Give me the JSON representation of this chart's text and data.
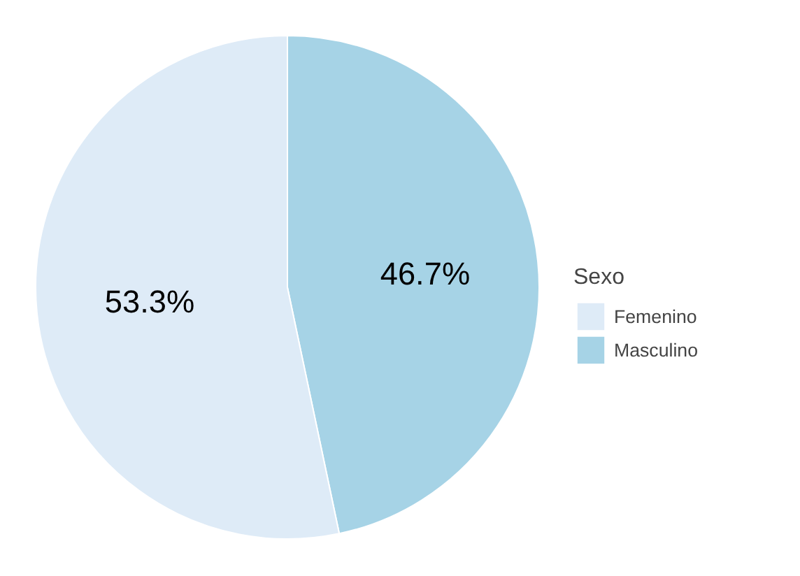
{
  "chart_data": {
    "type": "pie",
    "legend_title": "Sexo",
    "legend": "right",
    "categories": [
      "Femenino",
      "Masculino"
    ],
    "values": [
      53.3,
      46.7
    ],
    "colors": [
      "#deebf7",
      "#a6d3e6"
    ],
    "value_labels": [
      "53.3%",
      "46.7%"
    ]
  }
}
